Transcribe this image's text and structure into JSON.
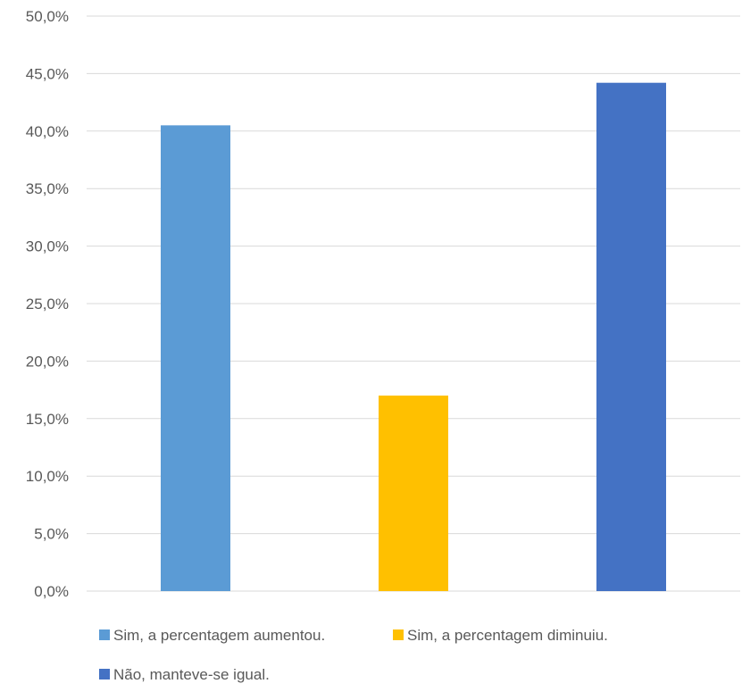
{
  "chart_data": {
    "type": "bar",
    "categories": [
      "Sim, a percentagem aumentou.",
      "Sim, a percentagem diminuiu.",
      "Não, manteve-se igual."
    ],
    "values": [
      40.5,
      17.0,
      44.2
    ],
    "colors": [
      "#5b9bd5",
      "#ffc000",
      "#4472c4"
    ],
    "y_ticks": [
      "0,0%",
      "5,0%",
      "10,0%",
      "15,0%",
      "20,0%",
      "25,0%",
      "30,0%",
      "35,0%",
      "40,0%",
      "45,0%",
      "50,0%"
    ],
    "ylim": [
      0,
      50
    ],
    "grid": true,
    "legend": {
      "placement": "bottom",
      "entries": [
        {
          "label": "Sim, a percentagem aumentou.",
          "color": "#5b9bd5"
        },
        {
          "label": "Sim, a percentagem diminuiu.",
          "color": "#ffc000"
        },
        {
          "label": "Não, manteve-se igual.",
          "color": "#4472c4"
        }
      ]
    },
    "title": "",
    "xlabel": "",
    "ylabel": ""
  }
}
